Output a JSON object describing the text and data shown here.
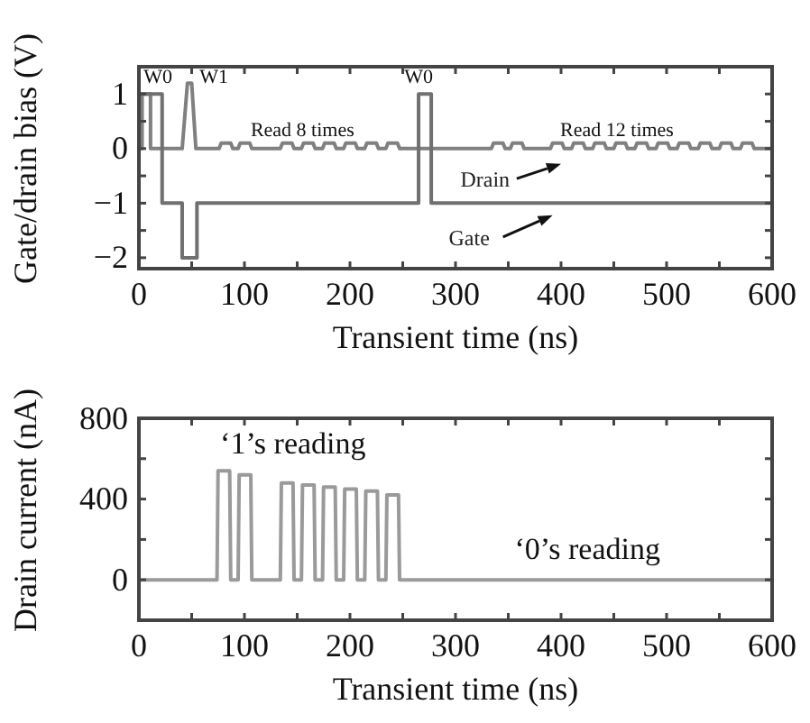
{
  "chart_data": [
    {
      "type": "line",
      "xlabel": "Transient time (ns)",
      "ylabel": "Gate/drain bias (V)",
      "xlim": [
        0,
        600
      ],
      "ylim": [
        -2.2,
        1.5
      ],
      "xticks": [
        0,
        {
          "value": 50,
          "label": null
        },
        100,
        {
          "value": 150,
          "label": null
        },
        200,
        {
          "value": 250,
          "label": null
        },
        300,
        {
          "value": 350,
          "label": null
        },
        400,
        {
          "value": 450,
          "label": null
        },
        500,
        {
          "value": 550,
          "label": null
        },
        600
      ],
      "yticks": [
        {
          "value": -2,
          "label": "−2"
        },
        {
          "value": -1.5,
          "label": null
        },
        {
          "value": -1,
          "label": "−1"
        },
        {
          "value": -0.5,
          "label": null
        },
        0,
        {
          "value": 0.5,
          "label": null
        },
        1
      ],
      "line_style": "solid",
      "series": [
        {
          "name": "Drain",
          "color": "#808080",
          "x": [
            0,
            3,
            3,
            11,
            11,
            41,
            46,
            50,
            54,
            76,
            78,
            87,
            89,
            94,
            96,
            105,
            107,
            134,
            136,
            145,
            147,
            154,
            156,
            165,
            167,
            174,
            176,
            185,
            187,
            194,
            196,
            205,
            207,
            214,
            216,
            225,
            227,
            234,
            236,
            245,
            247,
            334,
            336,
            345,
            347,
            352,
            354,
            363,
            365,
            390,
            392,
            401,
            403,
            410,
            412,
            421,
            423,
            430,
            432,
            441,
            443,
            450,
            452,
            461,
            463,
            470,
            472,
            481,
            483,
            490,
            492,
            501,
            503,
            510,
            512,
            521,
            523,
            530,
            532,
            541,
            543,
            550,
            552,
            561,
            563,
            570,
            572,
            581,
            583,
            600
          ],
          "values": [
            0,
            0,
            1,
            1,
            0,
            0,
            1.2,
            1.2,
            0,
            0,
            0.1,
            0.1,
            0,
            0,
            0.1,
            0.1,
            0,
            0,
            0.1,
            0.1,
            0,
            0,
            0.1,
            0.1,
            0,
            0,
            0.1,
            0.1,
            0,
            0,
            0.1,
            0.1,
            0,
            0,
            0.1,
            0.1,
            0,
            0,
            0.1,
            0.1,
            0,
            0,
            0.1,
            0.1,
            0,
            0,
            0.1,
            0.1,
            0,
            0,
            0.1,
            0.1,
            0,
            0,
            0.1,
            0.1,
            0,
            0,
            0.1,
            0.1,
            0,
            0,
            0.1,
            0.1,
            0,
            0,
            0.1,
            0.1,
            0,
            0,
            0.1,
            0.1,
            0,
            0,
            0.1,
            0.1,
            0,
            0,
            0.1,
            0.1,
            0,
            0,
            0.1,
            0.1,
            0,
            0,
            0.1,
            0.1,
            0,
            0
          ]
        },
        {
          "name": "Gate",
          "color": "#707070",
          "x": [
            0,
            22,
            22,
            41,
            41,
            55,
            55,
            265,
            265,
            277,
            277,
            600
          ],
          "values": [
            1,
            1,
            -1,
            -1,
            -2,
            -2,
            -1,
            -1,
            1,
            1,
            -1,
            -1
          ]
        }
      ],
      "annotations": [
        "W0",
        "W1",
        "W0",
        "Read 8 times",
        "Read 12 times"
      ]
    },
    {
      "type": "line",
      "xlabel": "Transient time (ns)",
      "ylabel": "Drain current (nA)",
      "xlim": [
        0,
        600
      ],
      "ylim": [
        -200,
        800
      ],
      "xticks": [
        0,
        {
          "value": 50,
          "label": null
        },
        100,
        {
          "value": 150,
          "label": null
        },
        200,
        {
          "value": 250,
          "label": null
        },
        300,
        {
          "value": 350,
          "label": null
        },
        400,
        {
          "value": 450,
          "label": null
        },
        500,
        {
          "value": 550,
          "label": null
        },
        600
      ],
      "yticks": [
        {
          "value": -200,
          "label": null
        },
        0,
        {
          "value": 200,
          "label": null
        },
        400,
        {
          "value": 600,
          "label": null
        },
        800
      ],
      "line_style": "solid",
      "series": [
        {
          "color": "#9a9a9a",
          "x": [
            0,
            74,
            75,
            86,
            87,
            94,
            95,
            106,
            107,
            134,
            135,
            146,
            147,
            154,
            155,
            166,
            167,
            174,
            175,
            186,
            187,
            194,
            195,
            206,
            207,
            214,
            215,
            226,
            227,
            234,
            235,
            246,
            247,
            600
          ],
          "values": [
            0,
            0,
            540,
            540,
            0,
            0,
            520,
            520,
            0,
            0,
            480,
            480,
            0,
            0,
            470,
            470,
            0,
            0,
            460,
            460,
            0,
            0,
            450,
            450,
            0,
            0,
            440,
            440,
            0,
            0,
            420,
            420,
            0,
            0
          ]
        }
      ],
      "annotations": [
        "‘1’s reading",
        "‘0’s reading"
      ]
    }
  ]
}
